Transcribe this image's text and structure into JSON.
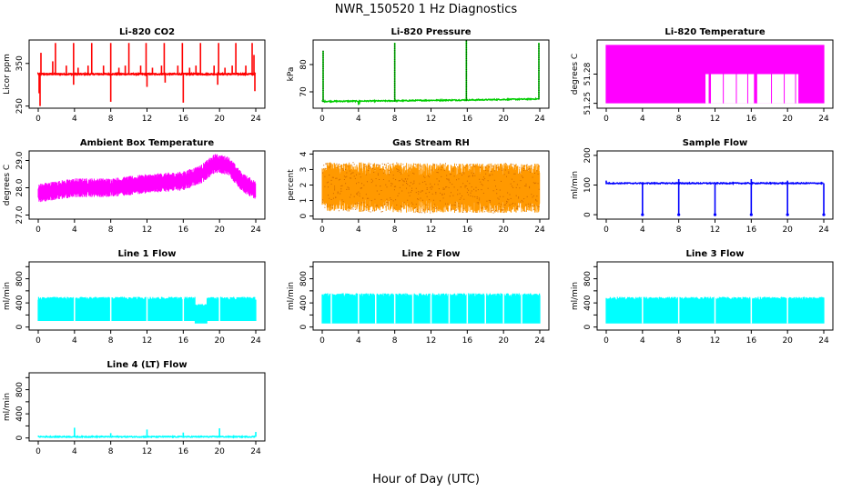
{
  "figure": {
    "title": "NWR_150520  1 Hz Diagnostics",
    "xlabel": "Hour of Day (UTC)"
  },
  "colors": {
    "red": "#ff0000",
    "green": "#00cc00",
    "magenta": "#ff00ff",
    "orange": "#ff9900",
    "blue": "#0000ff",
    "cyan": "#00ffff",
    "axis": "#000000"
  },
  "chart_data": [
    {
      "type": "line",
      "title": "Li-820 CO2",
      "ylabel": "Licor ppm",
      "xlim": [
        0,
        24
      ],
      "xticks": [
        0,
        4,
        8,
        12,
        16,
        20,
        24
      ],
      "ylim": [
        245,
        405
      ],
      "yticks": [
        250,
        350
      ],
      "ytick_labels": [
        "250",
        "350"
      ],
      "color": "red",
      "style": "line",
      "baseline": 325,
      "spikes_up": [
        [
          0.3,
          375
        ],
        [
          1.6,
          355
        ],
        [
          1.9,
          398
        ],
        [
          3.1,
          345
        ],
        [
          3.9,
          398
        ],
        [
          4.4,
          340
        ],
        [
          5.5,
          345
        ],
        [
          5.9,
          398
        ],
        [
          7.2,
          345
        ],
        [
          8.0,
          398
        ],
        [
          8.9,
          340
        ],
        [
          9.6,
          345
        ],
        [
          10.0,
          398
        ],
        [
          11.3,
          345
        ],
        [
          11.9,
          398
        ],
        [
          12.6,
          340
        ],
        [
          13.6,
          345
        ],
        [
          13.9,
          398
        ],
        [
          15.4,
          345
        ],
        [
          15.9,
          398
        ],
        [
          16.7,
          340
        ],
        [
          17.4,
          345
        ],
        [
          17.9,
          398
        ],
        [
          19.4,
          345
        ],
        [
          19.9,
          398
        ],
        [
          20.6,
          340
        ],
        [
          21.4,
          345
        ],
        [
          21.8,
          398
        ],
        [
          22.9,
          345
        ],
        [
          23.6,
          398
        ],
        [
          23.8,
          370
        ]
      ],
      "spikes_down": [
        [
          0.1,
          280
        ],
        [
          0.2,
          250
        ],
        [
          3.9,
          300
        ],
        [
          8.0,
          260
        ],
        [
          12.0,
          295
        ],
        [
          14.0,
          305
        ],
        [
          16.0,
          258
        ],
        [
          19.8,
          300
        ],
        [
          23.9,
          285
        ]
      ]
    },
    {
      "type": "line",
      "title": "Li-820 Pressure",
      "ylabel": "kPa",
      "xlim": [
        0,
        24
      ],
      "xticks": [
        0,
        4,
        8,
        12,
        16,
        20,
        24
      ],
      "ylim": [
        64,
        89
      ],
      "yticks": [
        70,
        80
      ],
      "ytick_labels": [
        "70",
        "80"
      ],
      "color": "green",
      "style": "line",
      "baseline": [
        [
          0,
          66.5
        ],
        [
          4,
          66.6
        ],
        [
          8,
          66.7
        ],
        [
          12,
          66.9
        ],
        [
          16,
          67.0
        ],
        [
          20,
          67.2
        ],
        [
          24,
          67.4
        ]
      ],
      "spikes_up": [
        [
          0.1,
          85
        ],
        [
          8.0,
          88
        ],
        [
          15.9,
          89
        ],
        [
          23.9,
          88
        ]
      ],
      "spikes_down": [
        [
          4.0,
          65.2
        ],
        [
          4.1,
          65.5
        ]
      ]
    },
    {
      "type": "band",
      "title": "Li-820 Temperature",
      "ylabel": "degrees C",
      "xlim": [
        0,
        24
      ],
      "xticks": [
        0,
        4,
        8,
        12,
        16,
        20,
        24
      ],
      "ylim": [
        51.245,
        51.315
      ],
      "yticks": [
        51.25,
        51.28
      ],
      "ytick_labels": [
        "51.25",
        "51.28"
      ],
      "color": "magenta",
      "style": "band",
      "low": 51.25,
      "high": 51.31,
      "mid": 51.28,
      "gaps": [
        [
          10.9,
          11.3
        ],
        [
          11.5,
          16.3
        ],
        [
          16.6,
          21.2
        ]
      ]
    },
    {
      "type": "line",
      "title": "Ambient Box Temperature",
      "ylabel": "degrees C",
      "xlim": [
        0,
        24
      ],
      "xticks": [
        0,
        4,
        8,
        12,
        16,
        20,
        24
      ],
      "ylim": [
        26.85,
        29.35
      ],
      "yticks": [
        27.0,
        28.0,
        29.0
      ],
      "ytick_labels": [
        "27.0",
        "28.0",
        "29.0"
      ],
      "color": "magenta",
      "style": "noisy",
      "center": [
        [
          0,
          27.8
        ],
        [
          2,
          27.9
        ],
        [
          4,
          28.0
        ],
        [
          8,
          28.0
        ],
        [
          12,
          28.15
        ],
        [
          16,
          28.25
        ],
        [
          18,
          28.5
        ],
        [
          19.5,
          28.9
        ],
        [
          21,
          28.8
        ],
        [
          22.5,
          28.2
        ],
        [
          24,
          27.9
        ]
      ],
      "amplitude": 0.35
    },
    {
      "type": "scatter",
      "title": "Gas Stream RH",
      "ylabel": "percent",
      "xlim": [
        0,
        24
      ],
      "xticks": [
        0,
        4,
        8,
        12,
        16,
        20,
        24
      ],
      "ylim": [
        -0.2,
        4.2
      ],
      "yticks": [
        0,
        1,
        2,
        3,
        4
      ],
      "ytick_labels": [
        "0",
        "1",
        "2",
        "3",
        "4"
      ],
      "color": "orange",
      "style": "noisy",
      "center": [
        [
          0,
          1.9
        ],
        [
          12,
          1.8
        ],
        [
          24,
          1.8
        ]
      ],
      "amplitude": 1.6
    },
    {
      "type": "line",
      "title": "Sample Flow",
      "ylabel": "ml/min",
      "xlim": [
        0,
        24
      ],
      "xticks": [
        0,
        4,
        8,
        12,
        16,
        20,
        24
      ],
      "ylim": [
        -15,
        215
      ],
      "yticks": [
        0,
        100,
        200
      ],
      "ytick_labels": [
        "0",
        "100",
        "200"
      ],
      "color": "blue",
      "style": "line",
      "baseline": 106,
      "spikes_up": [
        [
          0.0,
          115
        ],
        [
          8.0,
          120
        ],
        [
          16.0,
          120
        ],
        [
          20.0,
          115
        ]
      ],
      "spikes_down": [
        [
          4.0,
          0
        ],
        [
          8.0,
          0
        ],
        [
          12.0,
          0
        ],
        [
          16.0,
          0
        ],
        [
          20.0,
          0
        ],
        [
          24.0,
          0
        ]
      ]
    },
    {
      "type": "band",
      "title": "Line 1 Flow",
      "ylabel": "ml/min",
      "xlim": [
        0,
        24
      ],
      "xticks": [
        0,
        4,
        8,
        12,
        16,
        20,
        24
      ],
      "ylim": [
        -50,
        1080
      ],
      "yticks": [
        0,
        200,
        400,
        600,
        800,
        1000
      ],
      "ytick_labels": [
        "0",
        "400",
        "800"
      ],
      "ytick_label_values": [
        0,
        400,
        800
      ],
      "color": "cyan",
      "style": "band",
      "low": 100,
      "high": 500,
      "dips": [
        [
          17.3,
          18.6,
          380,
          60
        ]
      ],
      "breaks": [
        4.0,
        8.0,
        12.0,
        16.0,
        20.0
      ]
    },
    {
      "type": "band",
      "title": "Line 2 Flow",
      "ylabel": "ml/min",
      "xlim": [
        0,
        24
      ],
      "xticks": [
        0,
        4,
        8,
        12,
        16,
        20,
        24
      ],
      "ylim": [
        -50,
        1080
      ],
      "yticks": [
        0,
        200,
        400,
        600,
        800,
        1000
      ],
      "ytick_labels": [
        "0",
        "400",
        "800"
      ],
      "ytick_label_values": [
        0,
        400,
        800
      ],
      "color": "cyan",
      "style": "band",
      "low": 60,
      "high": 560,
      "breaks": [
        1.0,
        4.0,
        5.9,
        8.0,
        10.0,
        12.0,
        14.0,
        16.0,
        18.0,
        20.0,
        22.0
      ]
    },
    {
      "type": "band",
      "title": "Line 3 Flow",
      "ylabel": "ml/min",
      "xlim": [
        0,
        24
      ],
      "xticks": [
        0,
        4,
        8,
        12,
        16,
        20,
        24
      ],
      "ylim": [
        -50,
        1080
      ],
      "yticks": [
        0,
        200,
        400,
        600,
        800,
        1000
      ],
      "ytick_labels": [
        "0",
        "400",
        "800"
      ],
      "ytick_label_values": [
        0,
        400,
        800
      ],
      "color": "cyan",
      "style": "band",
      "low": 60,
      "high": 500,
      "breaks": [
        4.0,
        8.0,
        12.0,
        16.0,
        20.0
      ]
    },
    {
      "type": "line",
      "title": "Line 4 (LT) Flow",
      "ylabel": "ml/min",
      "xlim": [
        0,
        24
      ],
      "xticks": [
        0,
        4,
        8,
        12,
        16,
        20,
        24
      ],
      "ylim": [
        -50,
        1080
      ],
      "yticks": [
        0,
        200,
        400,
        600,
        800,
        1000
      ],
      "ytick_labels": [
        "0",
        "400",
        "800"
      ],
      "ytick_label_values": [
        0,
        400,
        800
      ],
      "color": "cyan",
      "style": "line",
      "baseline": 20,
      "spikes_up": [
        [
          4.0,
          170
        ],
        [
          8.0,
          80
        ],
        [
          12.0,
          140
        ],
        [
          16.0,
          90
        ],
        [
          20.0,
          160
        ],
        [
          24.0,
          100
        ]
      ]
    }
  ]
}
